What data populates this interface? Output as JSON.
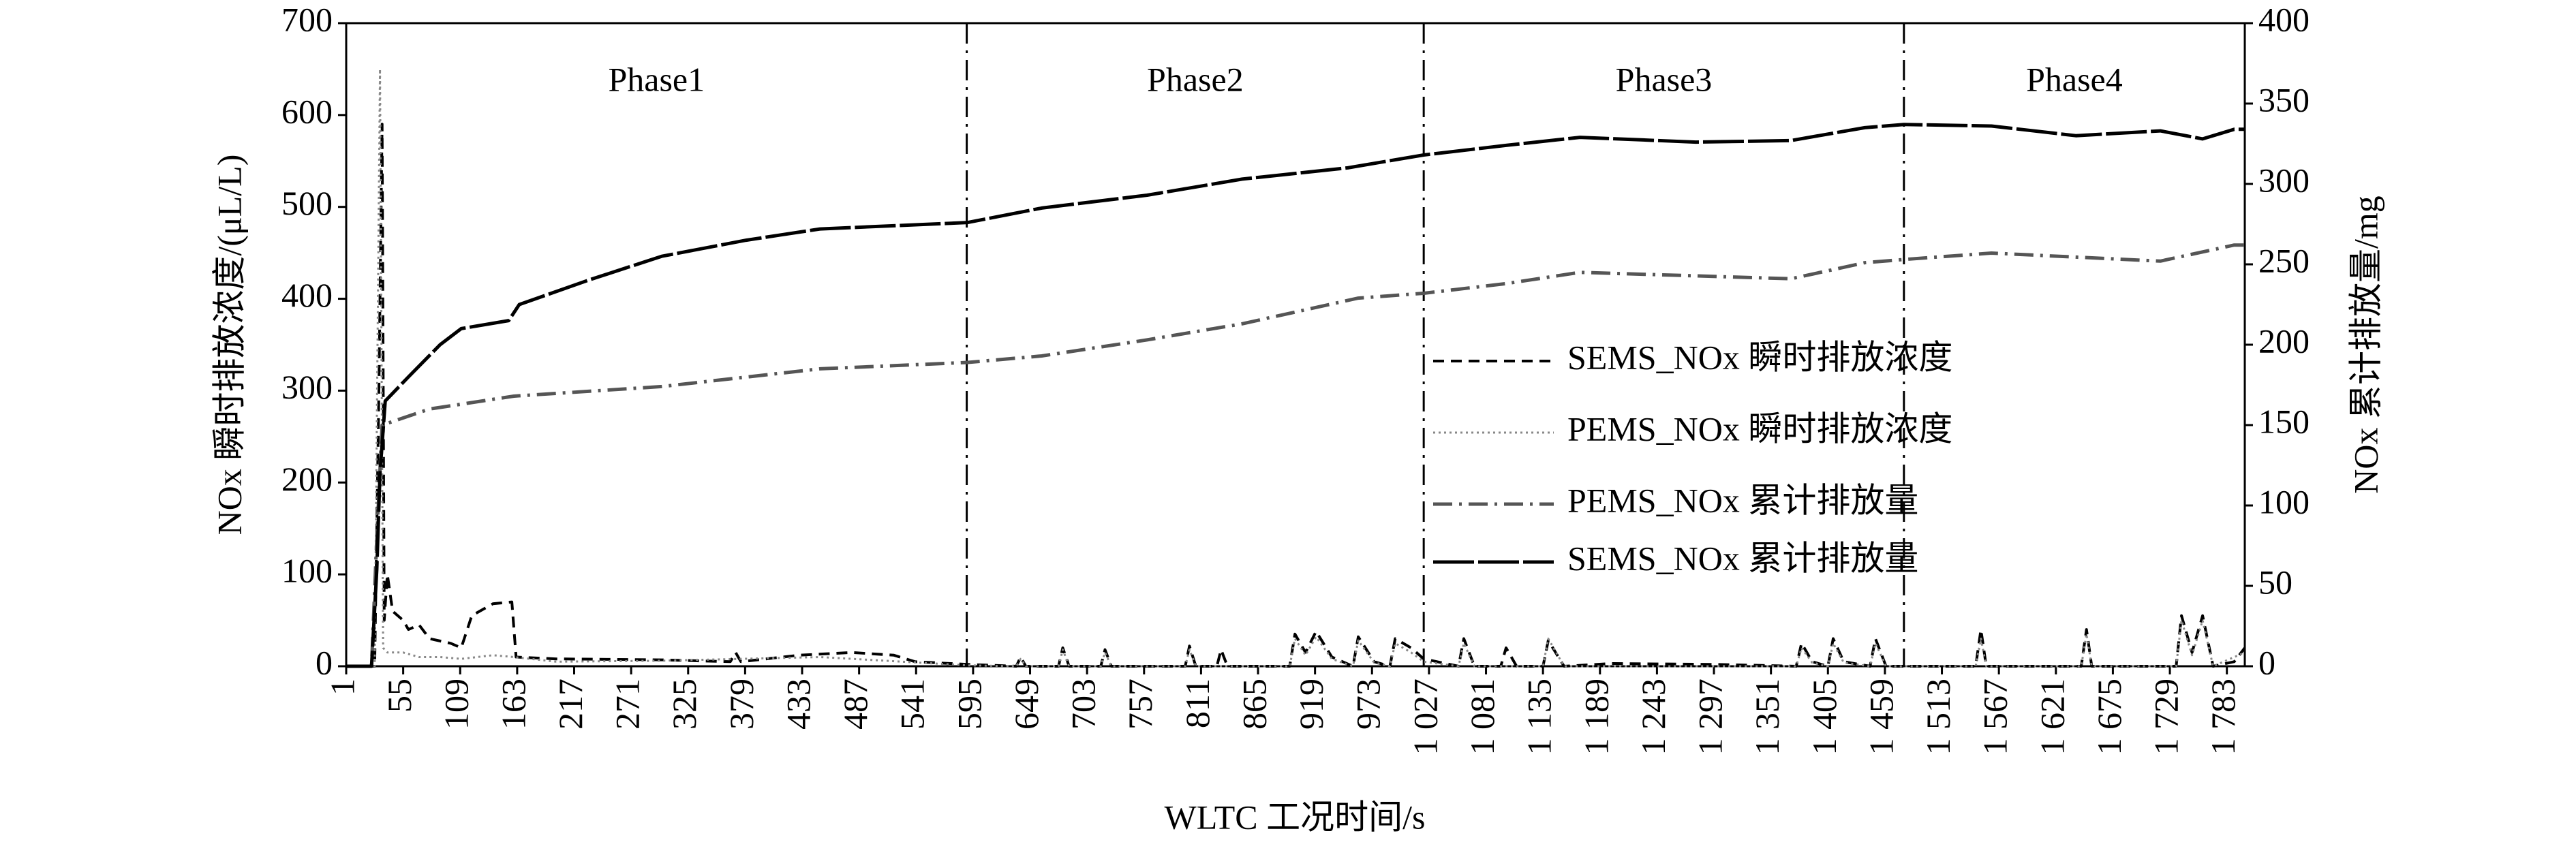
{
  "chart_data": {
    "type": "line",
    "x_label": "WLTC 工况时间/s",
    "y_label": "NOx 瞬时排放浓度/(μL/L)",
    "y2_label": "NOx 累计排放量/mg",
    "xlim": [
      1,
      1800
    ],
    "xticks": [
      1,
      55,
      109,
      163,
      217,
      271,
      325,
      379,
      433,
      487,
      541,
      595,
      649,
      703,
      757,
      811,
      865,
      919,
      973,
      {
        "value": 1027,
        "label": "1 027"
      },
      {
        "value": 1081,
        "label": "1 081"
      },
      {
        "value": 1135,
        "label": "1 135"
      },
      {
        "value": 1189,
        "label": "1 189"
      },
      {
        "value": 1243,
        "label": "1 243"
      },
      {
        "value": 1297,
        "label": "1 297"
      },
      {
        "value": 1351,
        "label": "1 351"
      },
      {
        "value": 1405,
        "label": "1 405"
      },
      {
        "value": 1459,
        "label": "1 459"
      },
      {
        "value": 1513,
        "label": "1 513"
      },
      {
        "value": 1567,
        "label": "1 567"
      },
      {
        "value": 1621,
        "label": "1 621"
      },
      {
        "value": 1675,
        "label": "1 675"
      },
      {
        "value": 1729,
        "label": "1 729"
      },
      {
        "value": 1783,
        "label": "1 783"
      }
    ],
    "ylim": [
      0,
      700
    ],
    "yticks": [
      0,
      100,
      200,
      300,
      400,
      500,
      600,
      700
    ],
    "y2lim": [
      0,
      400
    ],
    "y2ticks": [
      0,
      50,
      100,
      150,
      200,
      250,
      300,
      350,
      400
    ],
    "phases": [
      "Phase1",
      "Phase2",
      "Phase3",
      "Phase4"
    ],
    "phase_boundaries": [
      589,
      1022,
      1477
    ],
    "series": [
      {
        "name": "SEMS_NOx 瞬时排放浓度",
        "color": "#000000",
        "dash": "dashed",
        "x": [
          1,
          28,
          32,
          35,
          37,
          40,
          45,
          55,
          60,
          70,
          80,
          100,
          110,
          120,
          140,
          158,
          162,
          200,
          300,
          365,
          370,
          375,
          430,
          480,
          520,
          540,
          590,
          636,
          640,
          645,
          676,
          680,
          686,
          716,
          720,
          726,
          796,
          800,
          806,
          826,
          830,
          836,
          895,
          900,
          910,
          920,
          935,
          955,
          960,
          975,
          990,
          995,
          1010,
          1022,
          1055,
          1060,
          1070,
          1095,
          1100,
          1110,
          1135,
          1140,
          1155,
          1200,
          1300,
          1375,
          1380,
          1390,
          1405,
          1410,
          1420,
          1445,
          1450,
          1460,
          1477,
          1545,
          1550,
          1555,
          1645,
          1650,
          1655,
          1735,
          1740,
          1750,
          1760,
          1770,
          1790,
          1800
        ],
        "values": [
          0,
          0,
          300,
          590,
          50,
          100,
          60,
          50,
          40,
          45,
          30,
          25,
          20,
          55,
          68,
          70,
          10,
          8,
          7,
          5,
          15,
          5,
          12,
          15,
          12,
          5,
          2,
          0,
          10,
          0,
          0,
          20,
          0,
          0,
          18,
          0,
          0,
          22,
          0,
          0,
          18,
          0,
          0,
          35,
          15,
          38,
          10,
          0,
          32,
          5,
          0,
          30,
          20,
          8,
          0,
          30,
          0,
          0,
          20,
          0,
          0,
          28,
          0,
          3,
          2,
          0,
          25,
          5,
          0,
          30,
          5,
          0,
          30,
          0,
          0,
          0,
          40,
          0,
          0,
          40,
          0,
          0,
          55,
          15,
          55,
          0,
          5,
          20
        ]
      },
      {
        "name": "PEMS_NOx 瞬时排放浓度",
        "color": "#888888",
        "dash": "dotted",
        "x": [
          1,
          28,
          33,
          36,
          40,
          55,
          70,
          90,
          110,
          140,
          160,
          200,
          300,
          450,
          590,
          636,
          640,
          645,
          676,
          680,
          686,
          716,
          720,
          726,
          796,
          800,
          806,
          895,
          900,
          910,
          920,
          935,
          955,
          960,
          975,
          990,
          995,
          1010,
          1022,
          1055,
          1060,
          1070,
          1135,
          1140,
          1155,
          1375,
          1380,
          1390,
          1405,
          1410,
          1420,
          1445,
          1450,
          1460,
          1477,
          1545,
          1550,
          1555,
          1645,
          1650,
          1655,
          1735,
          1740,
          1750,
          1760,
          1770,
          1800
        ],
        "values": [
          0,
          0,
          650,
          20,
          15,
          15,
          10,
          10,
          8,
          12,
          10,
          5,
          6,
          10,
          1,
          0,
          8,
          0,
          0,
          18,
          0,
          0,
          15,
          0,
          0,
          18,
          0,
          0,
          30,
          12,
          32,
          8,
          0,
          28,
          4,
          0,
          25,
          15,
          5,
          0,
          25,
          0,
          0,
          30,
          0,
          0,
          20,
          4,
          0,
          25,
          4,
          0,
          25,
          0,
          0,
          0,
          30,
          0,
          0,
          35,
          0,
          0,
          50,
          12,
          50,
          0,
          15
        ]
      },
      {
        "name": "PEMS_NOx 累计排放量",
        "color": "#555555",
        "dash": "dashdot",
        "axis": "y2",
        "x": [
          1,
          25,
          30,
          35,
          80,
          160,
          300,
          450,
          590,
          660,
          760,
          850,
          960,
          1022,
          1100,
          1170,
          1370,
          1440,
          1477,
          1560,
          1720,
          1790,
          1800
        ],
        "values": [
          0,
          0,
          80,
          150,
          160,
          168,
          174,
          185,
          189,
          193,
          203,
          213,
          229,
          232,
          238,
          245,
          241,
          251,
          253,
          257,
          252,
          262,
          262
        ]
      },
      {
        "name": "SEMS_NOx 累计排放量",
        "color": "#000000",
        "dash": "longdash",
        "axis": "y2",
        "x": [
          1,
          25,
          30,
          33,
          38,
          60,
          90,
          110,
          155,
          165,
          230,
          300,
          380,
          450,
          590,
          660,
          760,
          850,
          950,
          1022,
          1100,
          1170,
          1280,
          1370,
          1440,
          1477,
          1560,
          1640,
          1720,
          1760,
          1790,
          1800
        ],
        "values": [
          0,
          0,
          60,
          120,
          165,
          180,
          200,
          210,
          215,
          225,
          240,
          255,
          265,
          272,
          276,
          285,
          293,
          303,
          310,
          318,
          324,
          329,
          326,
          327,
          335,
          337,
          336,
          330,
          333,
          328,
          334,
          334
        ]
      }
    ]
  }
}
